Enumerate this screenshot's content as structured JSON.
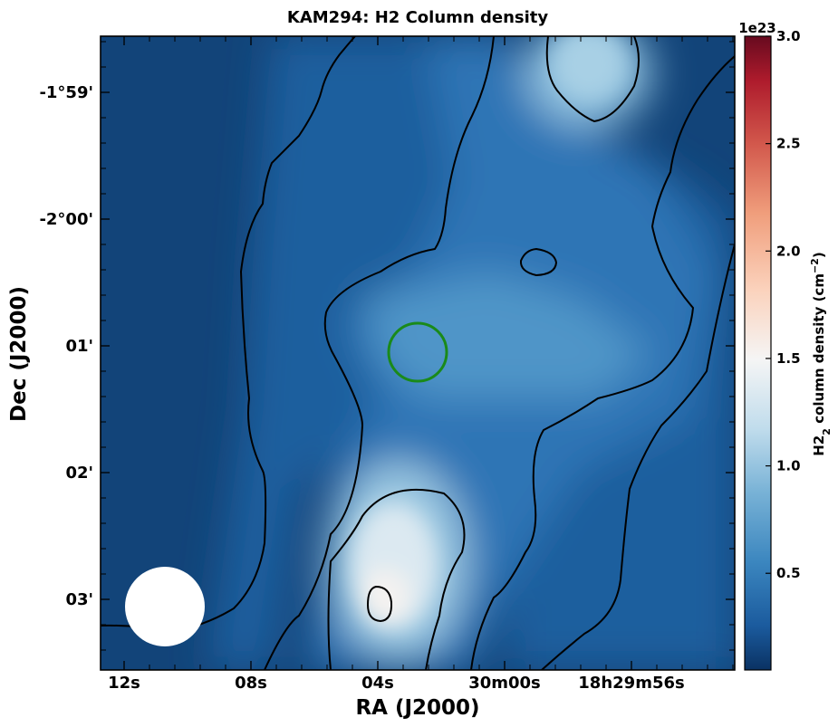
{
  "chart_data": {
    "type": "heatmap",
    "title": "KAM294: H2 Column density",
    "xlabel": "RA (J2000)",
    "ylabel": "Dec (J2000)",
    "x_ticks": [
      "12s",
      "08s",
      "04s",
      "30m00s",
      "18h29m56s"
    ],
    "y_ticks": [
      "-1°59'",
      "-2°00'",
      "01'",
      "02'",
      "03'"
    ],
    "colorbar": {
      "label": "H2$_2$ column density (cm$^{-2}$)",
      "label_main": "H2",
      "label_sub": "2",
      "label_mid": " column density (cm",
      "label_sup": "−2",
      "label_end": ")",
      "offset_text": "1e23",
      "ticks": [
        "0.5",
        "1.0",
        "1.5",
        "2.0",
        "2.5",
        "3.0"
      ],
      "tick_values": [
        0.5,
        1.0,
        1.5,
        2.0,
        2.5,
        3.0
      ],
      "range": [
        0.05,
        3.0
      ],
      "colormap": "RdBu_r"
    },
    "peak_value_1e23": 1.55,
    "beam_marker_color": "#ffffff",
    "source_marker_color": "#1a8a1a",
    "contour_color": "#000000"
  }
}
